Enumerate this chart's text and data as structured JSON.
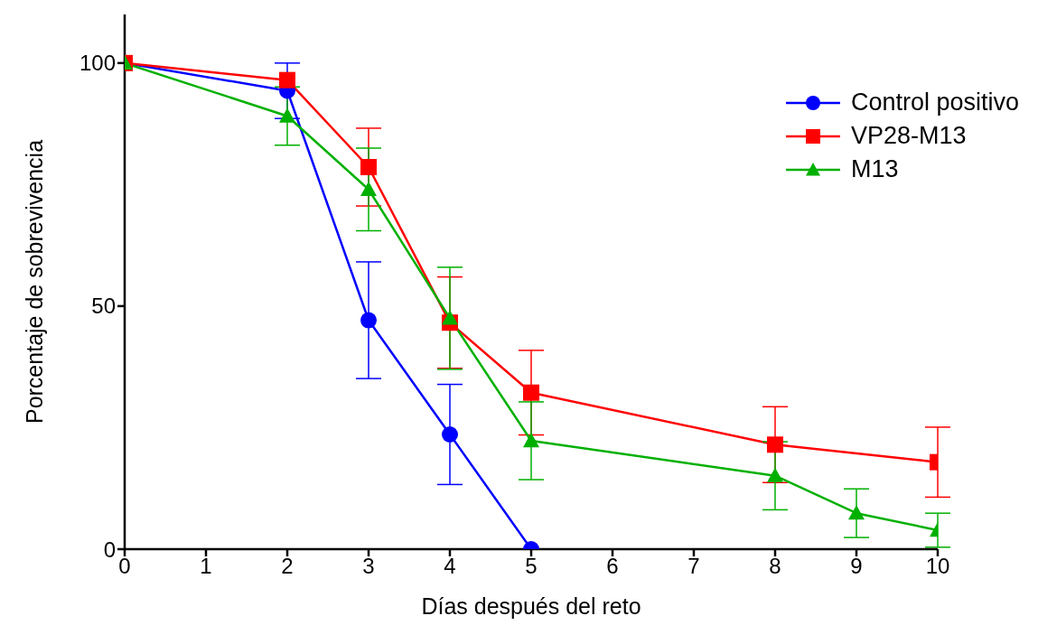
{
  "chart_data": {
    "type": "line",
    "xlabel": "Días después del reto",
    "ylabel": "Porcentaje de sobrevivencia",
    "xlim": [
      0,
      10
    ],
    "xticks": [
      0,
      1,
      2,
      3,
      4,
      5,
      6,
      7,
      8,
      9,
      10
    ],
    "ylim": [
      0,
      110
    ],
    "yticks": [
      0,
      50,
      100
    ],
    "grid": false,
    "legend": "top right",
    "line_style": "solid",
    "series": [
      {
        "name": "Control positivo",
        "color": "#0000ff",
        "marker": "circle",
        "x": [
          0,
          2,
          3,
          4,
          5
        ],
        "values": [
          100,
          94.3,
          47.1,
          23.6,
          0
        ],
        "errors": [
          null,
          5.7,
          12,
          10.3,
          null
        ]
      },
      {
        "name": "VP28-M13",
        "color": "#ff0000",
        "marker": "square",
        "x": [
          0,
          2,
          3,
          4,
          5,
          8,
          10
        ],
        "values": [
          100,
          96.5,
          78.6,
          46.6,
          32.2,
          21.5,
          17.9
        ],
        "errors": [
          null,
          null,
          8,
          9.4,
          8.7,
          7.8,
          7.2
        ]
      },
      {
        "name": "M13",
        "color": "#00b000",
        "marker": "triangle",
        "x": [
          0,
          2,
          3,
          4,
          5,
          8,
          9,
          10
        ],
        "values": [
          100,
          89.1,
          74,
          47.5,
          22.3,
          15.1,
          7.4,
          3.9
        ],
        "errors": [
          null,
          6,
          8.5,
          10.5,
          8,
          7,
          5,
          3.5
        ]
      }
    ]
  }
}
